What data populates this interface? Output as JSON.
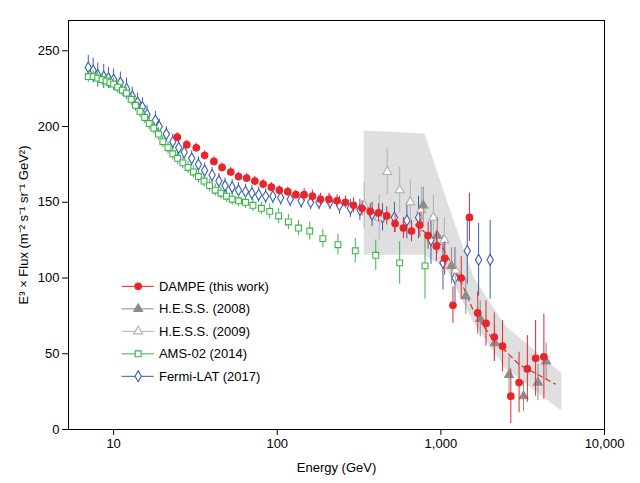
{
  "chart_data": {
    "type": "scatter",
    "xlabel": "Energy (GeV)",
    "ylabel": "E³ × Flux (m⁻² s⁻¹ sr⁻¹ GeV²)",
    "log": "x",
    "grid": false,
    "legend": "lower left",
    "xlim": [
      5.3,
      10000
    ],
    "ylim": [
      0,
      270
    ],
    "xticks": [
      10,
      100,
      {
        "value": 1000,
        "label": "1,000"
      },
      {
        "value": 10000,
        "label": "10,000"
      }
    ],
    "yticks": [
      0,
      50,
      100,
      150,
      200,
      250
    ],
    "band": {
      "color": "#d4d4d4",
      "x": [
        340,
        800,
        1100,
        1600,
        2500,
        5500
      ],
      "upper": [
        197,
        195,
        150,
        100,
        68,
        37
      ],
      "lower": [
        115,
        115,
        105,
        70,
        40,
        12
      ]
    },
    "fit": {
      "color": "#e8262a",
      "line_style": "dashed",
      "x": [
        700,
        1000,
        1300,
        1600,
        2000,
        3000,
        5000
      ],
      "values": [
        135,
        122,
        100,
        77,
        62,
        43,
        30
      ]
    },
    "series": [
      {
        "name": "DAMPE (this work)",
        "color": "#e8262a",
        "marker": "circle",
        "x": [
          24.5,
          28,
          32,
          36,
          41,
          46,
          52,
          58,
          65,
          73,
          82,
          92,
          103,
          116,
          130,
          146,
          164,
          184,
          207,
          232,
          261,
          293,
          330,
          370,
          416,
          467,
          525,
          590,
          662,
          744,
          836,
          939,
          1055,
          1185,
          1331,
          1495,
          1680,
          1887,
          2120,
          2382,
          2676,
          3006,
          3377,
          3793,
          4261
        ],
        "values": [
          193,
          188,
          186,
          181,
          177,
          173,
          170,
          167,
          166,
          164,
          162,
          160,
          158,
          157,
          155,
          155,
          154,
          152,
          152,
          151,
          150,
          148,
          146,
          144,
          143,
          141,
          136,
          133,
          131,
          135,
          128,
          121,
          113,
          82,
          100,
          140,
          77,
          70,
          61,
          55,
          22,
          31,
          40,
          47,
          48
        ],
        "errors": [
          3,
          3,
          3,
          3,
          3,
          3,
          3,
          3,
          3,
          3,
          3,
          3,
          3,
          3,
          3,
          4,
          4,
          4,
          4,
          4,
          4,
          5,
          5,
          5,
          6,
          6,
          6,
          7,
          7,
          8,
          9,
          10,
          11,
          12,
          14,
          16,
          14,
          15,
          16,
          17,
          18,
          20,
          22,
          25,
          28
        ]
      },
      {
        "name": "H.E.S.S. (2008)",
        "color": "#8c8c8c",
        "marker": "triangle",
        "x": [
          780,
          950,
          1160,
          1420,
          1740,
          2130,
          2610,
          3200,
          3920,
          4400
        ],
        "values": [
          148,
          128,
          108,
          88,
          73,
          57,
          36,
          22,
          31,
          45
        ],
        "errors": [
          12,
          12,
          12,
          12,
          12,
          12,
          12,
          10,
          12,
          12
        ]
      },
      {
        "name": "H.E.S.S. (2009)",
        "color": "#b0b0b0",
        "marker": "open triangle",
        "x": [
          340,
          420,
          470,
          560,
          650,
          760,
          900,
          1050,
          1230
        ],
        "values": [
          148,
          140,
          170,
          158,
          150,
          145,
          140,
          125,
          105
        ],
        "errors": [
          15,
          15,
          15,
          15,
          15,
          15,
          15,
          15,
          15
        ]
      },
      {
        "name": "AMS-02 (2014)",
        "color": "#3cb34a",
        "marker": "open square",
        "x": [
          7,
          7.5,
          8,
          8.5,
          9,
          9.5,
          10,
          10.6,
          11.3,
          12,
          12.8,
          13.6,
          14.5,
          15.5,
          16.5,
          17.6,
          18.8,
          20,
          21.5,
          23,
          24.6,
          26.5,
          28.5,
          30.7,
          33,
          35.7,
          38.6,
          41.8,
          45.3,
          49,
          53,
          58,
          64,
          71,
          80,
          90,
          102,
          117,
          135,
          158,
          190,
          235,
          300,
          400,
          560,
          800
        ],
        "values": [
          233,
          233,
          232,
          231,
          230,
          229,
          228,
          226,
          224,
          222,
          218,
          214,
          210,
          206,
          202,
          199,
          195,
          190,
          186,
          182,
          179,
          176,
          173,
          170,
          167,
          164,
          161,
          158,
          156,
          154,
          152,
          151,
          150,
          148,
          146,
          144,
          141,
          137,
          133,
          131,
          126,
          122,
          118,
          115,
          110,
          108
        ],
        "errors": [
          4,
          4,
          4,
          4,
          4,
          4,
          4,
          4,
          4,
          4,
          4,
          4,
          4,
          4,
          4,
          4,
          4,
          4,
          4,
          4,
          4,
          4,
          4,
          4,
          4,
          4,
          4,
          4,
          4,
          4,
          4,
          4,
          4,
          4,
          4,
          5,
          5,
          5,
          5,
          6,
          6,
          7,
          8,
          10,
          14,
          22
        ]
      },
      {
        "name": "Fermi-LAT (2017)",
        "color": "#3a5fb0",
        "marker": "open diamond",
        "x": [
          7,
          7.5,
          8,
          8.7,
          9.3,
          10,
          11,
          12,
          13,
          14,
          15,
          16,
          18,
          19,
          21,
          23,
          25,
          27,
          30,
          33,
          36,
          40,
          44,
          48,
          53,
          58,
          64,
          70,
          77,
          85,
          94,
          105,
          120,
          140,
          160,
          180,
          210,
          240,
          280,
          320,
          380,
          440,
          520,
          620,
          730,
          870,
          1030,
          1220,
          1450,
          1700,
          2000
        ],
        "values": [
          239,
          237,
          234,
          233,
          232,
          231,
          229,
          225,
          220,
          216,
          213,
          208,
          204,
          200,
          195,
          190,
          186,
          183,
          179,
          175,
          171,
          168,
          164,
          161,
          160,
          158,
          157,
          156,
          155,
          154,
          154,
          153,
          152,
          151,
          150,
          150,
          150,
          148,
          146,
          145,
          142,
          140,
          140,
          138,
          140,
          125,
          110,
          100,
          118,
          112,
          112
        ],
        "errors": [
          8,
          8,
          8,
          8,
          7,
          7,
          7,
          7,
          6,
          6,
          6,
          6,
          6,
          5,
          5,
          5,
          5,
          5,
          5,
          5,
          5,
          5,
          5,
          5,
          5,
          5,
          5,
          5,
          5,
          5,
          5,
          5,
          5,
          5,
          5,
          5,
          5,
          6,
          6,
          7,
          8,
          9,
          10,
          12,
          14,
          16,
          18,
          20,
          22,
          24,
          26
        ]
      }
    ]
  }
}
